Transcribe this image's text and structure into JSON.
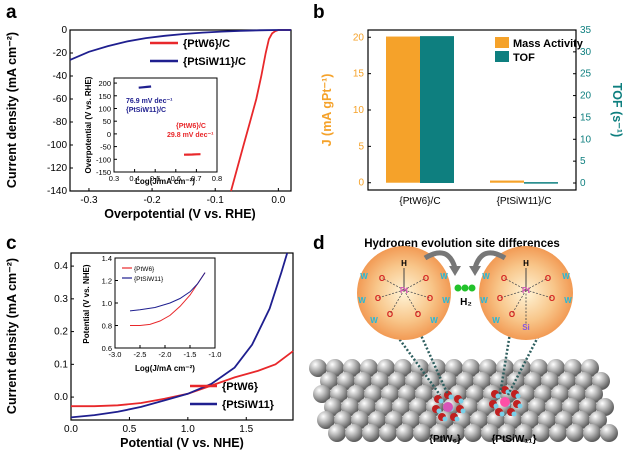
{
  "panels": {
    "a": "a",
    "b": "b",
    "c": "c",
    "d": "d"
  },
  "colors": {
    "red": "#e8282b",
    "navy": "#1f1f8f",
    "orange": "#f5a22a",
    "teal": "#0e7f7f",
    "black": "#000000"
  },
  "chart_data": [
    {
      "id": "a",
      "type": "line",
      "xlabel": "Overpotential (V vs. RHE)",
      "ylabel": "Current density (mA cm⁻²)",
      "xlim": [
        -0.33,
        0.02
      ],
      "ylim": [
        -140,
        0
      ],
      "xticks": [
        "-0.3",
        "-0.2",
        "-0.1",
        "0.0"
      ],
      "yticks": [
        "0",
        "-20",
        "-40",
        "-60",
        "-80",
        "-100",
        "-120",
        "-140"
      ],
      "legend_position": "top-right",
      "series": [
        {
          "name": "{PtW6}/C",
          "color": "#e8282b",
          "points": [
            [
              -0.075,
              -140
            ],
            [
              -0.065,
              -120
            ],
            [
              -0.055,
              -100
            ],
            [
              -0.045,
              -80
            ],
            [
              -0.035,
              -60
            ],
            [
              -0.027,
              -40
            ],
            [
              -0.02,
              -20
            ],
            [
              -0.015,
              -8
            ],
            [
              -0.01,
              -3
            ],
            [
              -0.005,
              -1
            ],
            [
              0.0,
              0
            ],
            [
              0.02,
              0
            ]
          ]
        },
        {
          "name": "{PtSiW11}/C",
          "color": "#1f1f8f",
          "points": [
            [
              -0.33,
              -26
            ],
            [
              -0.3,
              -19
            ],
            [
              -0.27,
              -14
            ],
            [
              -0.24,
              -10
            ],
            [
              -0.21,
              -7
            ],
            [
              -0.18,
              -5
            ],
            [
              -0.15,
              -3.5
            ],
            [
              -0.12,
              -2.3
            ],
            [
              -0.09,
              -1.4
            ],
            [
              -0.06,
              -0.8
            ],
            [
              -0.03,
              -0.3
            ],
            [
              0.0,
              0
            ],
            [
              0.02,
              0
            ]
          ]
        }
      ],
      "inset": {
        "xlabel": "Log(J/mA cm⁻²)",
        "ylabel": "Overpotential (V vs. RHE)",
        "xlim": [
          0.3,
          0.8
        ],
        "ylim": [
          -150,
          220
        ],
        "xticks": [
          "0.3",
          "0.4",
          "0.5",
          "0.6",
          "0.7",
          "0.8"
        ],
        "yticks": [
          "200",
          "150",
          "100",
          "50",
          "0",
          "-50",
          "-100",
          "-150"
        ],
        "series": [
          {
            "name": "{PtSiW11}/C",
            "color": "#1f1f8f",
            "points": [
              [
                0.42,
                182
              ],
              [
                0.44,
                183.5
              ],
              [
                0.46,
                185
              ],
              [
                0.48,
                186.5
              ]
            ],
            "annotation": "76.9 mV dec⁻¹"
          },
          {
            "name": "{PtW6}/C",
            "color": "#e8282b",
            "points": [
              [
                0.64,
                -82
              ],
              [
                0.66,
                -81.5
              ],
              [
                0.68,
                -81
              ],
              [
                0.7,
                -80.5
              ],
              [
                0.72,
                -80
              ]
            ],
            "annotation": "29.8 mV dec⁻¹"
          }
        ]
      }
    },
    {
      "id": "b",
      "type": "bar",
      "categories": [
        "{PtW6}/C",
        "{PtSiW11}/C"
      ],
      "ylabel_left": "J (mA gPt⁻¹)",
      "ylabel_right": "TOF (s⁻¹)",
      "ylim_left": [
        -1,
        21
      ],
      "ylim_right": [
        -1.6,
        35
      ],
      "yticks_left": [
        "0",
        "5",
        "10",
        "15",
        "20"
      ],
      "yticks_right": [
        "0",
        "5",
        "10",
        "15",
        "20",
        "25",
        "30",
        "35"
      ],
      "legend_position": "top-right",
      "series": [
        {
          "name": "Mass Activity",
          "color": "#f5a22a",
          "axis": "left",
          "values": [
            20.1,
            0.3
          ]
        },
        {
          "name": "TOF",
          "color": "#0e7f7f",
          "axis": "right",
          "values": [
            33.6,
            0.2
          ]
        }
      ]
    },
    {
      "id": "c",
      "type": "line",
      "xlabel": "Potential (V vs. NHE)",
      "ylabel": "Current density (mA cm⁻²)",
      "xlim": [
        0.0,
        1.9
      ],
      "ylim": [
        -0.07,
        0.44
      ],
      "xticks": [
        "0.0",
        "0.5",
        "1.0",
        "1.5"
      ],
      "yticks": [
        "0.4",
        "0.3",
        "0.2",
        "0.1",
        "0.0"
      ],
      "legend_position": "bottom-right",
      "series": [
        {
          "name": "{PtW6}",
          "color": "#e8282b",
          "points": [
            [
              0.0,
              -0.028
            ],
            [
              0.2,
              -0.028
            ],
            [
              0.4,
              -0.025
            ],
            [
              0.6,
              -0.018
            ],
            [
              0.8,
              -0.005
            ],
            [
              1.0,
              0.01
            ],
            [
              1.2,
              0.035
            ],
            [
              1.4,
              0.06
            ],
            [
              1.6,
              0.08
            ],
            [
              1.75,
              0.1
            ],
            [
              1.9,
              0.14
            ]
          ]
        },
        {
          "name": "{PtSiW11}",
          "color": "#1f1f8f",
          "points": [
            [
              0.0,
              -0.062
            ],
            [
              0.2,
              -0.055
            ],
            [
              0.4,
              -0.045
            ],
            [
              0.6,
              -0.03
            ],
            [
              0.8,
              -0.01
            ],
            [
              1.0,
              0.01
            ],
            [
              1.2,
              0.04
            ],
            [
              1.4,
              0.09
            ],
            [
              1.55,
              0.16
            ],
            [
              1.7,
              0.27
            ],
            [
              1.8,
              0.38
            ],
            [
              1.85,
              0.44
            ]
          ]
        }
      ],
      "inset": {
        "xlabel": "Log(J/mA cm⁻²)",
        "ylabel": "Potential (V vs. NHE)",
        "xlim": [
          -3.0,
          -1.0
        ],
        "ylim": [
          0.6,
          1.4
        ],
        "xticks": [
          "-3.0",
          "-2.5",
          "-2.0",
          "-1.5",
          "-1.0"
        ],
        "yticks": [
          "1.4",
          "1.2",
          "1.0",
          "0.8",
          "0.6"
        ],
        "series": [
          {
            "name": "{PtW6}",
            "color": "#e8282b",
            "points": [
              [
                -2.7,
                0.8
              ],
              [
                -2.5,
                0.8
              ],
              [
                -2.3,
                0.81
              ],
              [
                -2.1,
                0.84
              ],
              [
                -1.9,
                0.89
              ],
              [
                -1.7,
                0.97
              ],
              [
                -1.5,
                1.07
              ],
              [
                -1.35,
                1.17
              ],
              [
                -1.2,
                1.27
              ]
            ]
          },
          {
            "name": "{PtSiW11}",
            "color": "#1f1f8f",
            "points": [
              [
                -2.7,
                0.93
              ],
              [
                -2.5,
                0.94
              ],
              [
                -2.2,
                0.96
              ],
              [
                -1.9,
                1.0
              ],
              [
                -1.7,
                1.04
              ],
              [
                -1.5,
                1.1
              ],
              [
                -1.35,
                1.17
              ],
              [
                -1.2,
                1.27
              ]
            ]
          }
        ]
      }
    }
  ],
  "panel_d": {
    "title": "Hydrogen evolution site differences",
    "h2_label": "H₂",
    "left_cluster": {
      "label": "{PtW₆}",
      "atom_labels": [
        "H",
        "O",
        "O",
        "O",
        "O",
        "O",
        "O",
        "Pt",
        "W",
        "W",
        "W",
        "W",
        "W",
        "W"
      ]
    },
    "right_cluster": {
      "label": "{PtSiW₁₁}",
      "atom_labels": [
        "H",
        "O",
        "O",
        "O",
        "O",
        "O",
        "Pt",
        "W",
        "W",
        "W",
        "W",
        "W",
        "Si"
      ]
    }
  }
}
